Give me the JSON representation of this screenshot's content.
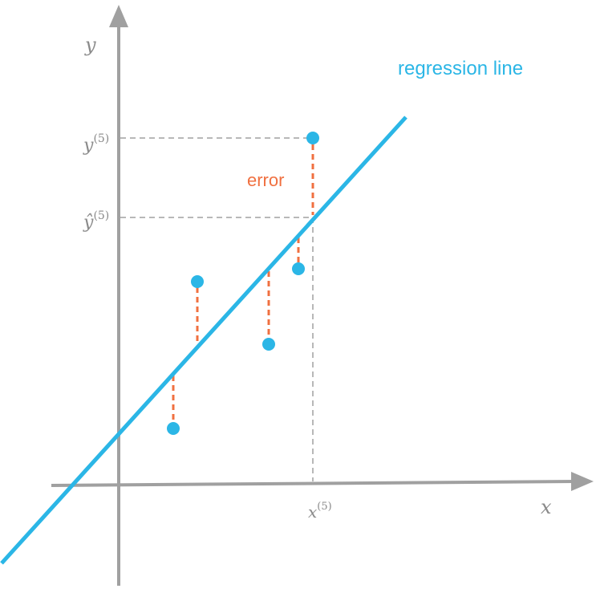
{
  "labels": {
    "y_axis": "y",
    "x_axis": "x",
    "y5_base": "y",
    "y5_sup": "(5)",
    "yhat5_base": "ŷ",
    "yhat5_sup": "(5)",
    "x5_base": "x",
    "x5_sup": "(5)",
    "error": "error",
    "regression_line": "regression line"
  },
  "colors": {
    "axis": "#a0a0a0",
    "line": "#2bb6e6",
    "point": "#2bb6e6",
    "error": "#f07040",
    "guide": "#b8b8b8"
  }
}
